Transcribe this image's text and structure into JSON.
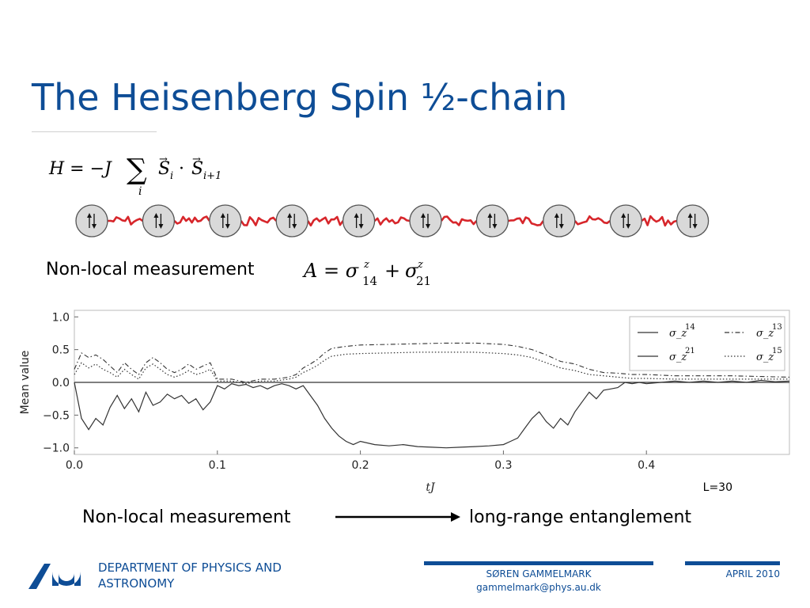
{
  "slide": {
    "title": "The Heisenberg Spin ½-chain",
    "nonlocal_label": "Non-local measurement",
    "bottom_left": "Non-local measurement",
    "bottom_right": "long-range entanglement",
    "chain_sites": 10
  },
  "equations": {
    "hamiltonian": "H = −J Σ_i S_i · S_{i+1}",
    "measurement": "A = σ^z_14 + σ^z_21"
  },
  "footer": {
    "department": "DEPARTMENT OF PHYSICS AND ASTRONOMY",
    "author": "SØREN GAMMELMARK",
    "email": "gammelmark@phys.au.dk",
    "date": "APRIL 2010"
  },
  "colors": {
    "accent": "#0e4d96",
    "spring": "#d7262b",
    "site_fill": "#d9d9d9"
  },
  "chart_data": {
    "type": "line",
    "xlabel": "tJ",
    "ylabel": "Mean value",
    "xlim": [
      0,
      0.5
    ],
    "ylim": [
      -1.1,
      1.1
    ],
    "xticks": [
      "0.0",
      "0.1",
      "0.2",
      "0.3",
      "0.4"
    ],
    "yticks": [
      "1.0",
      "0.5",
      "0.0",
      "−0.5",
      "−1.0"
    ],
    "annotation": "L=30",
    "legend_position": "top-right",
    "series": [
      {
        "name": "σ_z^14",
        "style": "solid",
        "x": [
          0.0,
          0.005,
          0.01,
          0.015,
          0.02,
          0.025,
          0.03,
          0.035,
          0.04,
          0.045,
          0.05,
          0.055,
          0.06,
          0.065,
          0.07,
          0.075,
          0.08,
          0.085,
          0.09,
          0.095,
          0.1,
          0.105,
          0.11,
          0.115,
          0.12,
          0.125,
          0.13,
          0.135,
          0.14,
          0.145,
          0.15,
          0.155,
          0.16,
          0.165,
          0.17,
          0.175,
          0.18,
          0.185,
          0.19,
          0.195,
          0.2,
          0.21,
          0.22,
          0.23,
          0.24,
          0.25,
          0.26,
          0.27,
          0.28,
          0.29,
          0.3,
          0.305,
          0.31,
          0.315,
          0.32,
          0.325,
          0.33,
          0.335,
          0.34,
          0.345,
          0.35,
          0.355,
          0.36,
          0.365,
          0.37,
          0.375,
          0.38,
          0.385,
          0.39,
          0.395,
          0.4,
          0.41,
          0.42,
          0.43,
          0.44,
          0.45,
          0.46,
          0.47,
          0.48,
          0.49,
          0.5
        ],
        "y": [
          0.0,
          -0.55,
          -0.72,
          -0.55,
          -0.65,
          -0.38,
          -0.2,
          -0.4,
          -0.25,
          -0.45,
          -0.15,
          -0.35,
          -0.3,
          -0.18,
          -0.25,
          -0.2,
          -0.32,
          -0.25,
          -0.42,
          -0.3,
          -0.05,
          -0.1,
          -0.02,
          -0.05,
          -0.03,
          -0.08,
          -0.05,
          -0.1,
          -0.05,
          -0.02,
          -0.05,
          -0.1,
          -0.05,
          -0.2,
          -0.35,
          -0.55,
          -0.7,
          -0.82,
          -0.9,
          -0.95,
          -0.9,
          -0.95,
          -0.97,
          -0.95,
          -0.98,
          -0.99,
          -1.0,
          -0.99,
          -0.98,
          -0.97,
          -0.95,
          -0.9,
          -0.85,
          -0.7,
          -0.55,
          -0.45,
          -0.6,
          -0.7,
          -0.55,
          -0.65,
          -0.45,
          -0.3,
          -0.15,
          -0.25,
          -0.12,
          -0.1,
          -0.08,
          0.0,
          -0.02,
          0.0,
          -0.02,
          0.0,
          0.02,
          0.0,
          0.02,
          0.0,
          0.02,
          0.0,
          0.03,
          0.01,
          0.02
        ]
      },
      {
        "name": "σ_z^21",
        "style": "solid",
        "x": [
          0.0,
          0.1,
          0.2,
          0.3,
          0.4,
          0.5
        ],
        "y": [
          0.0,
          0.0,
          0.0,
          0.0,
          0.0,
          0.0
        ]
      },
      {
        "name": "σ_z^13",
        "style": "dashdot",
        "x": [
          0.0,
          0.005,
          0.01,
          0.015,
          0.02,
          0.025,
          0.03,
          0.035,
          0.04,
          0.045,
          0.05,
          0.055,
          0.06,
          0.065,
          0.07,
          0.075,
          0.08,
          0.085,
          0.09,
          0.095,
          0.1,
          0.11,
          0.12,
          0.13,
          0.14,
          0.15,
          0.155,
          0.16,
          0.165,
          0.17,
          0.175,
          0.18,
          0.19,
          0.2,
          0.22,
          0.24,
          0.26,
          0.28,
          0.3,
          0.31,
          0.32,
          0.33,
          0.34,
          0.35,
          0.36,
          0.37,
          0.38,
          0.39,
          0.4,
          0.42,
          0.44,
          0.46,
          0.48,
          0.5
        ],
        "y": [
          0.2,
          0.45,
          0.38,
          0.42,
          0.35,
          0.25,
          0.15,
          0.3,
          0.2,
          0.12,
          0.3,
          0.38,
          0.3,
          0.2,
          0.15,
          0.2,
          0.28,
          0.2,
          0.25,
          0.3,
          0.05,
          0.05,
          0.0,
          0.05,
          0.05,
          0.08,
          0.12,
          0.22,
          0.28,
          0.35,
          0.45,
          0.52,
          0.55,
          0.57,
          0.58,
          0.59,
          0.6,
          0.6,
          0.58,
          0.55,
          0.5,
          0.42,
          0.32,
          0.28,
          0.2,
          0.15,
          0.14,
          0.12,
          0.12,
          0.1,
          0.1,
          0.1,
          0.09,
          0.08
        ]
      },
      {
        "name": "σ_z^15",
        "style": "dotted",
        "x": [
          0.0,
          0.005,
          0.01,
          0.015,
          0.02,
          0.025,
          0.03,
          0.035,
          0.04,
          0.045,
          0.05,
          0.055,
          0.06,
          0.065,
          0.07,
          0.075,
          0.08,
          0.085,
          0.09,
          0.095,
          0.1,
          0.11,
          0.12,
          0.13,
          0.14,
          0.15,
          0.155,
          0.16,
          0.165,
          0.17,
          0.175,
          0.18,
          0.19,
          0.2,
          0.22,
          0.24,
          0.26,
          0.28,
          0.3,
          0.31,
          0.32,
          0.33,
          0.34,
          0.35,
          0.36,
          0.37,
          0.38,
          0.39,
          0.4,
          0.42,
          0.44,
          0.46,
          0.48,
          0.5
        ],
        "y": [
          0.12,
          0.3,
          0.22,
          0.28,
          0.2,
          0.15,
          0.08,
          0.2,
          0.12,
          0.05,
          0.22,
          0.28,
          0.2,
          0.12,
          0.08,
          0.12,
          0.18,
          0.12,
          0.15,
          0.2,
          0.02,
          0.02,
          -0.02,
          0.02,
          0.02,
          0.05,
          0.08,
          0.15,
          0.2,
          0.26,
          0.34,
          0.4,
          0.43,
          0.44,
          0.45,
          0.46,
          0.46,
          0.46,
          0.44,
          0.42,
          0.38,
          0.3,
          0.22,
          0.18,
          0.12,
          0.1,
          0.08,
          0.06,
          0.06,
          0.05,
          0.05,
          0.05,
          0.05,
          0.05
        ]
      }
    ]
  }
}
